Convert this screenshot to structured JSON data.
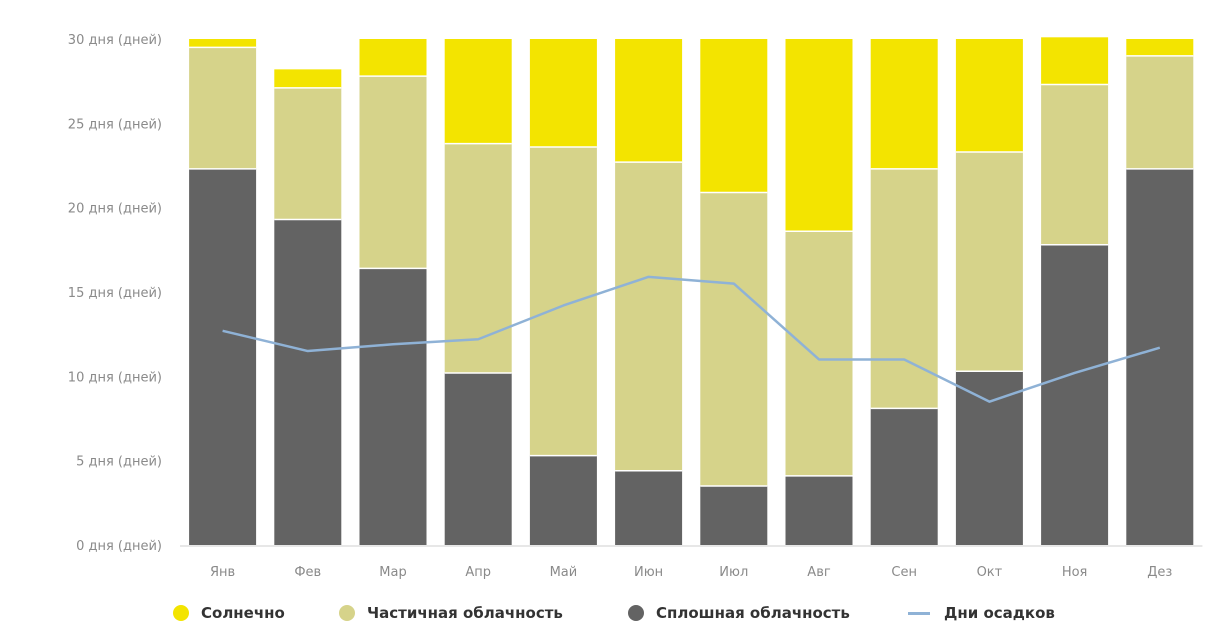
{
  "chart_data": {
    "type": "bar",
    "stacked": true,
    "categories": [
      "Янв",
      "Фев",
      "Мар",
      "Апр",
      "Май",
      "Июн",
      "Июл",
      "Авг",
      "Сен",
      "Окт",
      "Ноя",
      "Дез"
    ],
    "y_ticks": [
      "0 дня (дней)",
      "5 дня (дней)",
      "10 дня (дней)",
      "15 дня (дней)",
      "20 дня (дней)",
      "25 дня (дней)",
      "30 дня (дней)"
    ],
    "ylim": [
      0,
      30
    ],
    "grid": false,
    "legend_position": "bottom",
    "series": [
      {
        "name": "Сплошная облачность",
        "color": "#636363",
        "values": [
          22.3,
          19.3,
          16.4,
          10.2,
          5.3,
          4.4,
          3.5,
          4.1,
          8.1,
          10.3,
          17.8,
          22.3
        ]
      },
      {
        "name": "Частичная облачность",
        "color": "#d6d38a",
        "values": [
          7.2,
          7.8,
          11.4,
          13.6,
          18.3,
          18.3,
          17.4,
          14.5,
          14.2,
          13.0,
          9.5,
          6.7
        ]
      },
      {
        "name": "Солнечно",
        "color": "#f3e400",
        "values": [
          0.5,
          1.1,
          2.2,
          6.2,
          6.4,
          7.3,
          9.1,
          11.4,
          7.7,
          6.7,
          2.8,
          1.0
        ]
      }
    ],
    "line_series": [
      {
        "name": "Дни осадков",
        "color": "#8fb2d6",
        "values": [
          12.7,
          11.5,
          11.9,
          12.2,
          14.2,
          15.9,
          15.5,
          11.0,
          11.0,
          8.5,
          10.2,
          11.7
        ]
      }
    ]
  },
  "legend": {
    "items": [
      {
        "label": "Солнечно",
        "color": "#f3e400",
        "shape": "dot"
      },
      {
        "label": "Частичная облачность",
        "color": "#d6d38a",
        "shape": "dot"
      },
      {
        "label": "Сплошная облачность",
        "color": "#636363",
        "shape": "dot"
      },
      {
        "label": "Дни осадков",
        "color": "#8fb2d6",
        "shape": "line"
      }
    ]
  }
}
